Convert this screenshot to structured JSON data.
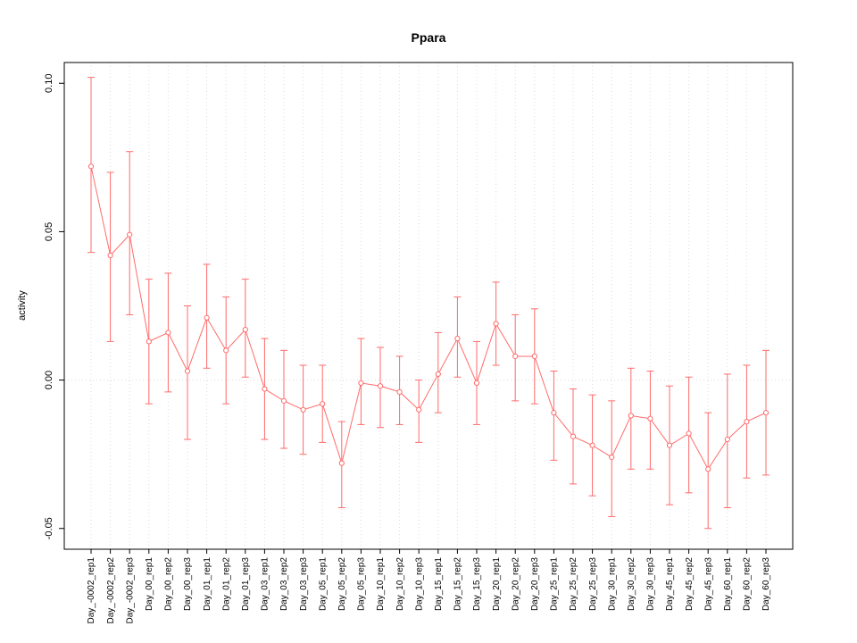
{
  "chart_data": {
    "type": "line",
    "title": "Ppara",
    "xlabel": "",
    "ylabel": "activity",
    "ylim": [
      -0.057,
      0.107
    ],
    "yticks": [
      -0.05,
      0.0,
      0.05,
      0.1
    ],
    "ytick_labels": [
      "-0.05",
      "0.00",
      "0.05",
      "0.10"
    ],
    "grid": "vertical-dotted-per-category",
    "zero_line": "horizontal-dotted-at-0",
    "legend_position": "none",
    "point_style": "open-circle",
    "error_bars": true,
    "colors": {
      "series": "#ff6b6b",
      "grid": "#dcdcdc",
      "zero_line": "#dcdcdc",
      "axis": "#000000",
      "background": "#ffffff"
    },
    "categories": [
      "Day_-0002_rep1",
      "Day_-0002_rep2",
      "Day_-0002_rep3",
      "Day_00_rep1",
      "Day_00_rep2",
      "Day_00_rep3",
      "Day_01_rep1",
      "Day_01_rep2",
      "Day_01_rep3",
      "Day_03_rep1",
      "Day_03_rep2",
      "Day_03_rep3",
      "Day_05_rep1",
      "Day_05_rep2",
      "Day_05_rep3",
      "Day_10_rep1",
      "Day_10_rep2",
      "Day_10_rep3",
      "Day_15_rep1",
      "Day_15_rep2",
      "Day_15_rep3",
      "Day_20_rep1",
      "Day_20_rep2",
      "Day_20_rep3",
      "Day_25_rep1",
      "Day_25_rep2",
      "Day_25_rep3",
      "Day_30_rep1",
      "Day_30_rep2",
      "Day_30_rep3",
      "Day_45_rep1",
      "Day_45_rep2",
      "Day_45_rep3",
      "Day_60_rep1",
      "Day_60_rep2",
      "Day_60_rep3"
    ],
    "series": [
      {
        "name": "activity",
        "values": [
          0.072,
          0.042,
          0.049,
          0.013,
          0.016,
          0.003,
          0.021,
          0.01,
          0.017,
          -0.003,
          -0.007,
          -0.01,
          -0.008,
          -0.028,
          -0.001,
          -0.002,
          -0.004,
          -0.01,
          0.002,
          0.014,
          -0.001,
          0.019,
          0.008,
          0.008,
          -0.011,
          -0.019,
          -0.022,
          -0.026,
          -0.012,
          -0.013,
          -0.022,
          -0.018,
          -0.03,
          -0.02,
          -0.014,
          -0.011
        ],
        "upper": [
          0.102,
          0.07,
          0.077,
          0.034,
          0.036,
          0.025,
          0.039,
          0.028,
          0.034,
          0.014,
          0.01,
          0.005,
          0.005,
          -0.014,
          0.014,
          0.011,
          0.008,
          0.0,
          0.016,
          0.028,
          0.013,
          0.033,
          0.022,
          0.024,
          0.003,
          -0.003,
          -0.005,
          -0.007,
          0.004,
          0.003,
          -0.002,
          0.001,
          -0.011,
          0.002,
          0.005,
          0.01
        ],
        "lower": [
          0.043,
          0.013,
          0.022,
          -0.008,
          -0.004,
          -0.02,
          0.004,
          -0.008,
          0.001,
          -0.02,
          -0.023,
          -0.025,
          -0.021,
          -0.043,
          -0.015,
          -0.016,
          -0.015,
          -0.021,
          -0.011,
          0.001,
          -0.015,
          0.005,
          -0.007,
          -0.008,
          -0.027,
          -0.035,
          -0.039,
          -0.046,
          -0.03,
          -0.03,
          -0.042,
          -0.038,
          -0.05,
          -0.043,
          -0.033,
          -0.032
        ]
      }
    ]
  }
}
